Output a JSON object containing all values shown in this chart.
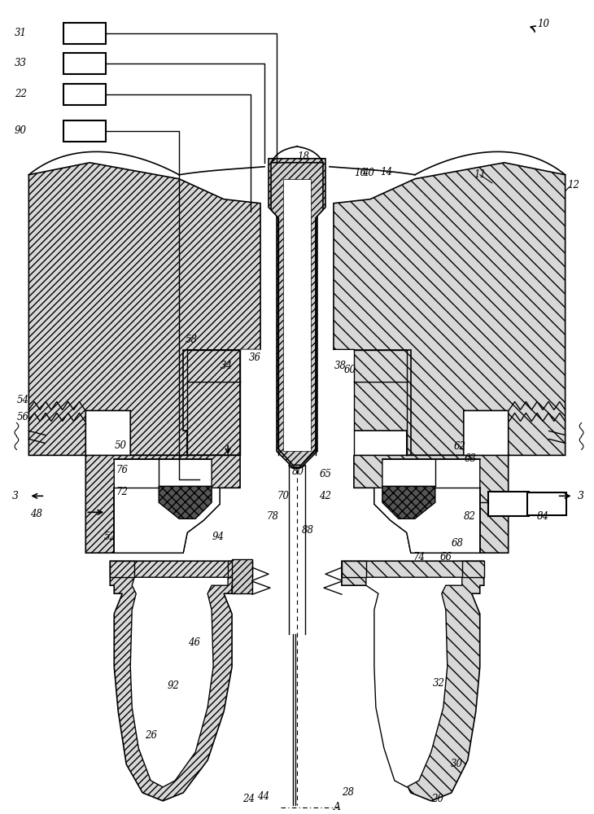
{
  "bg_color": "#ffffff",
  "line_color": "#000000",
  "fig_width": 7.3,
  "fig_height": 10.0,
  "dpi": 100
}
